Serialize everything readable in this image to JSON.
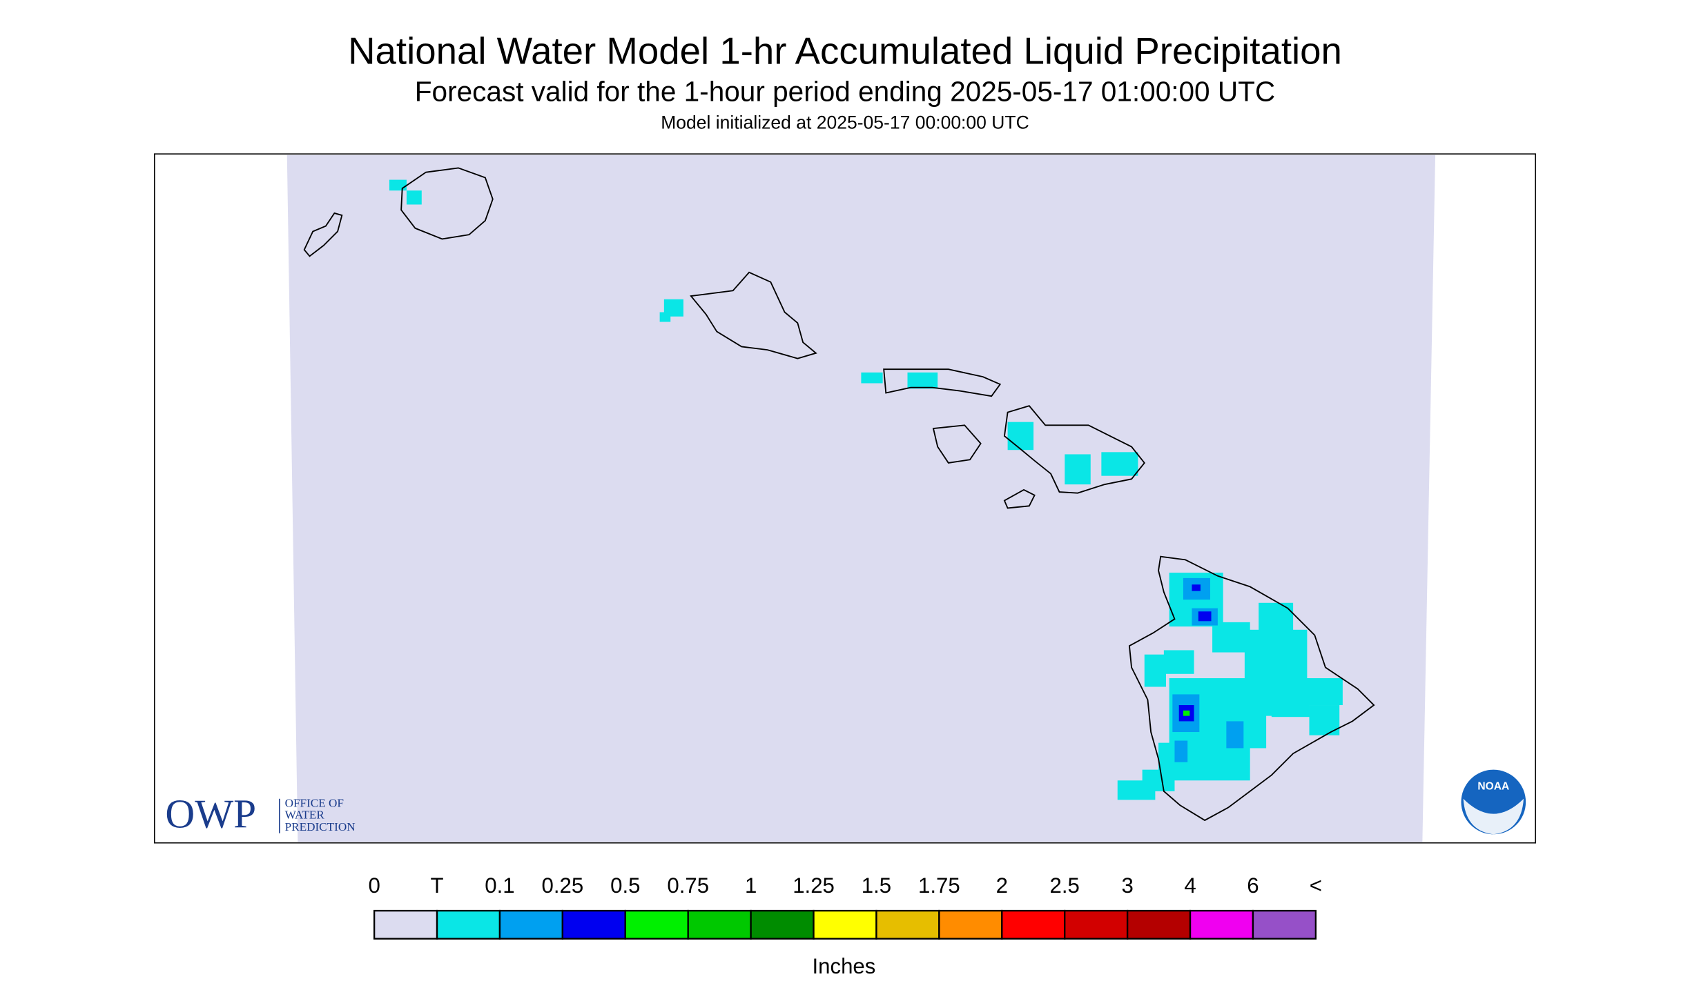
{
  "header": {
    "title": "National Water Model 1-hr Accumulated Liquid Precipitation",
    "subtitle": "Forecast valid for the 1-hour period ending 2025-05-17 01:00:00 UTC",
    "init": "Model initialized at 2025-05-17 00:00:00 UTC"
  },
  "legend": {
    "labels": [
      "0",
      "T",
      "0.1",
      "0.25",
      "0.5",
      "0.75",
      "1",
      "1.25",
      "1.5",
      "1.75",
      "2",
      "2.5",
      "3",
      "4",
      "6",
      "<"
    ],
    "colors": [
      "#dcdcf0",
      "#0ae6e6",
      "#00a0f0",
      "#0000f0",
      "#00f000",
      "#00c800",
      "#008c00",
      "#ffff00",
      "#e6be00",
      "#ff8c00",
      "#ff0000",
      "#d20000",
      "#b40000",
      "#f000f0",
      "#9650c8"
    ],
    "unit": "Inches"
  },
  "logos": {
    "owp": "OWP",
    "owp_lines": [
      "OFFICE OF",
      "WATER",
      "PREDICTION"
    ],
    "noaa": "NOAA"
  }
}
